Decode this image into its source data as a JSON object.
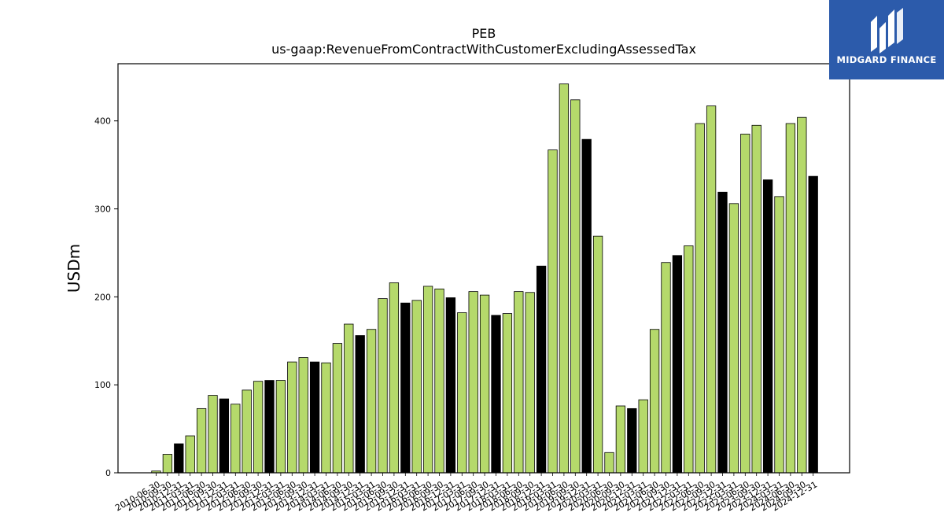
{
  "chart_data": {
    "type": "bar",
    "title": "PEB",
    "subtitle": "us-gaap:RevenueFromContractWithCustomerExcludingAssessedTax",
    "xlabel": "",
    "ylabel": "USDm",
    "ylim": [
      0,
      465
    ],
    "yticks": [
      0,
      100,
      200,
      300,
      400
    ],
    "grid": false,
    "colors": {
      "quarter": "#b5d96b",
      "annual": "#000000",
      "edge": "#000000"
    },
    "categories": [
      "2010-06-30",
      "2010-09-30",
      "2010-12-31",
      "2011-03-31",
      "2011-06-30",
      "2011-09-30",
      "2011-12-31",
      "2012-03-31",
      "2012-06-30",
      "2012-09-30",
      "2012-12-31",
      "2013-03-31",
      "2013-06-30",
      "2013-09-30",
      "2013-12-31",
      "2014-03-31",
      "2014-06-30",
      "2014-09-30",
      "2014-12-31",
      "2015-03-31",
      "2015-06-30",
      "2015-09-30",
      "2015-12-31",
      "2016-03-31",
      "2016-06-30",
      "2016-09-30",
      "2016-12-31",
      "2017-03-31",
      "2017-06-30",
      "2017-09-30",
      "2017-12-31",
      "2018-03-31",
      "2018-06-30",
      "2018-09-30",
      "2018-12-31",
      "2019-03-31",
      "2019-06-30",
      "2019-09-30",
      "2019-12-31",
      "2020-03-31",
      "2020-06-30",
      "2020-09-30",
      "2020-12-31",
      "2021-03-31",
      "2021-06-30",
      "2021-09-30",
      "2021-12-31",
      "2022-03-31",
      "2022-06-30",
      "2022-09-30",
      "2022-12-31",
      "2023-03-31",
      "2023-06-30",
      "2023-09-30",
      "2023-12-31",
      "2024-03-31",
      "2024-06-30",
      "2024-09-30",
      "2024-12-31"
    ],
    "values": [
      2,
      21,
      33,
      42,
      73,
      88,
      84,
      78,
      94,
      104,
      105,
      105,
      126,
      131,
      126,
      125,
      147,
      169,
      156,
      163,
      198,
      216,
      193,
      196,
      212,
      209,
      199,
      182,
      206,
      202,
      179,
      181,
      206,
      205,
      235,
      367,
      442,
      424,
      379,
      269,
      23,
      76,
      73,
      83,
      163,
      239,
      247,
      258,
      397,
      417,
      319,
      306,
      385,
      395,
      333,
      314,
      397,
      404,
      337
    ],
    "annual_flags": [
      0,
      0,
      1,
      0,
      0,
      0,
      1,
      0,
      0,
      0,
      1,
      0,
      0,
      0,
      1,
      0,
      0,
      0,
      1,
      0,
      0,
      0,
      1,
      0,
      0,
      0,
      1,
      0,
      0,
      0,
      1,
      0,
      0,
      0,
      1,
      0,
      0,
      0,
      1,
      0,
      0,
      0,
      1,
      0,
      0,
      0,
      1,
      0,
      0,
      0,
      1,
      0,
      0,
      0,
      1,
      0,
      0,
      0,
      1
    ]
  },
  "logo": {
    "text": "MIDGARD FINANCE"
  }
}
